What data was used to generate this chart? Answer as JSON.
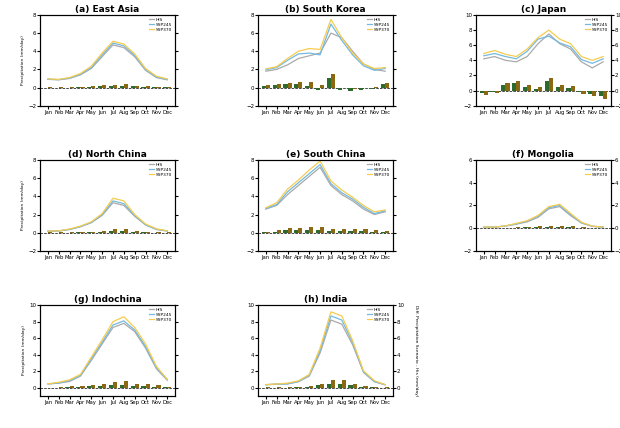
{
  "panels": [
    {
      "title": "(a) East Asia",
      "his": [
        0.9,
        0.85,
        1.0,
        1.4,
        2.1,
        3.4,
        4.7,
        4.4,
        3.4,
        1.9,
        1.1,
        0.85
      ],
      "ssp245": [
        0.92,
        0.87,
        1.05,
        1.45,
        2.2,
        3.6,
        4.9,
        4.6,
        3.55,
        2.0,
        1.15,
        0.9
      ],
      "ssp370": [
        0.95,
        0.9,
        1.1,
        1.55,
        2.35,
        3.8,
        5.1,
        4.8,
        3.7,
        2.1,
        1.25,
        0.95
      ],
      "bars_ssp245": [
        0.0,
        0.0,
        0.0,
        0.02,
        0.08,
        0.15,
        0.18,
        0.18,
        0.12,
        0.08,
        0.06,
        0.03
      ],
      "bars_ssp370": [
        0.02,
        0.02,
        0.03,
        0.05,
        0.15,
        0.28,
        0.32,
        0.35,
        0.22,
        0.12,
        0.08,
        0.04
      ],
      "ylim_left": [
        -2.0,
        8.0
      ],
      "ylim_right": [
        -2.0,
        8.0
      ],
      "yticks_left": [
        -2,
        0,
        2,
        4,
        6,
        8
      ],
      "yticks_right": [
        -2,
        0,
        2,
        4,
        6,
        8
      ]
    },
    {
      "title": "(b) South Korea",
      "his": [
        1.8,
        2.0,
        2.5,
        3.2,
        3.5,
        3.8,
        6.0,
        5.5,
        4.0,
        2.6,
        2.0,
        1.8
      ],
      "ssp245": [
        1.95,
        2.2,
        3.0,
        3.7,
        3.8,
        3.6,
        7.0,
        5.2,
        3.6,
        2.4,
        1.9,
        2.1
      ],
      "ssp370": [
        2.05,
        2.3,
        3.2,
        4.0,
        4.3,
        4.2,
        7.5,
        5.5,
        3.8,
        2.6,
        2.1,
        2.2
      ],
      "bars_ssp245": [
        0.15,
        0.25,
        0.35,
        0.35,
        0.18,
        -0.25,
        1.0,
        -0.3,
        -0.4,
        -0.25,
        -0.15,
        0.35
      ],
      "bars_ssp370": [
        0.25,
        0.35,
        0.55,
        0.65,
        0.65,
        0.25,
        1.45,
        -0.05,
        -0.2,
        -0.05,
        0.05,
        0.45
      ],
      "ylim_left": [
        -2.0,
        8.0
      ],
      "ylim_right": [
        -2.0,
        8.0
      ],
      "yticks_left": [
        -2,
        0,
        2,
        4,
        6,
        8
      ],
      "yticks_right": [
        -2,
        0,
        2,
        4,
        6,
        8
      ]
    },
    {
      "title": "(c) Japan",
      "his": [
        4.2,
        4.5,
        4.0,
        3.8,
        4.5,
        6.2,
        7.5,
        6.2,
        5.5,
        3.8,
        3.0,
        3.8
      ],
      "ssp245": [
        4.6,
        4.9,
        4.5,
        4.2,
        5.2,
        6.8,
        7.2,
        6.3,
        5.8,
        4.1,
        3.6,
        4.2
      ],
      "ssp370": [
        4.9,
        5.3,
        4.8,
        4.5,
        5.5,
        7.0,
        8.0,
        6.8,
        6.2,
        4.5,
        4.0,
        4.5
      ],
      "bars_ssp245": [
        -0.35,
        -0.25,
        0.75,
        0.95,
        0.45,
        0.25,
        1.2,
        0.45,
        0.35,
        -0.25,
        -0.45,
        -0.75
      ],
      "bars_ssp370": [
        -0.55,
        -0.35,
        0.95,
        1.2,
        0.75,
        0.45,
        1.7,
        0.75,
        0.55,
        -0.45,
        -0.75,
        -1.1
      ],
      "ylim_left": [
        -2.0,
        10.0
      ],
      "ylim_right": [
        -2.0,
        10.0
      ],
      "yticks_left": [
        -2,
        0,
        2,
        4,
        6,
        8,
        10
      ],
      "yticks_right": [
        -2,
        0,
        2,
        4,
        6,
        8,
        10
      ]
    },
    {
      "title": "(d) North China",
      "his": [
        0.15,
        0.18,
        0.35,
        0.65,
        1.1,
        1.9,
        3.3,
        3.0,
        1.8,
        0.85,
        0.35,
        0.18
      ],
      "ssp245": [
        0.16,
        0.19,
        0.36,
        0.67,
        1.12,
        2.0,
        3.5,
        3.2,
        1.9,
        0.88,
        0.37,
        0.19
      ],
      "ssp370": [
        0.17,
        0.2,
        0.4,
        0.72,
        1.2,
        2.1,
        3.8,
        3.5,
        2.0,
        0.95,
        0.42,
        0.2
      ],
      "bars_ssp245": [
        0.01,
        0.01,
        0.01,
        0.02,
        0.02,
        0.08,
        0.18,
        0.18,
        0.08,
        0.03,
        0.01,
        0.01
      ],
      "bars_ssp370": [
        0.02,
        0.02,
        0.04,
        0.06,
        0.09,
        0.18,
        0.45,
        0.45,
        0.18,
        0.08,
        0.05,
        0.02
      ],
      "ylim_left": [
        -2.0,
        8.0
      ],
      "ylim_right": [
        -2.0,
        8.0
      ],
      "yticks_left": [
        -2,
        0,
        2,
        4,
        6,
        8
      ],
      "yticks_right": [
        -2,
        0,
        2,
        4,
        6,
        8
      ]
    },
    {
      "title": "(e) South China",
      "his": [
        2.6,
        3.0,
        4.2,
        5.2,
        6.2,
        7.2,
        5.2,
        4.2,
        3.5,
        2.6,
        2.0,
        2.3
      ],
      "ssp245": [
        2.65,
        3.1,
        4.5,
        5.5,
        6.5,
        7.5,
        5.4,
        4.4,
        3.7,
        2.8,
        2.1,
        2.4
      ],
      "ssp370": [
        2.75,
        3.3,
        4.8,
        5.8,
        6.9,
        7.9,
        5.7,
        4.7,
        3.9,
        3.0,
        2.3,
        2.5
      ],
      "bars_ssp245": [
        0.02,
        0.08,
        0.28,
        0.28,
        0.28,
        0.28,
        0.18,
        0.18,
        0.18,
        0.18,
        0.08,
        0.08
      ],
      "bars_ssp370": [
        0.08,
        0.28,
        0.48,
        0.48,
        0.65,
        0.65,
        0.45,
        0.45,
        0.38,
        0.38,
        0.28,
        0.18
      ],
      "ylim_left": [
        -2.0,
        8.0
      ],
      "ylim_right": [
        -2.0,
        8.0
      ],
      "yticks_left": [
        -2,
        0,
        2,
        4,
        6,
        8
      ],
      "yticks_right": [
        -2,
        0,
        2,
        4,
        6,
        8
      ]
    },
    {
      "title": "(f) Mongolia",
      "his": [
        0.08,
        0.08,
        0.18,
        0.35,
        0.55,
        0.95,
        1.7,
        1.9,
        1.1,
        0.45,
        0.15,
        0.08
      ],
      "ssp245": [
        0.09,
        0.09,
        0.19,
        0.37,
        0.62,
        1.05,
        1.8,
        2.0,
        1.2,
        0.48,
        0.17,
        0.09
      ],
      "ssp370": [
        0.09,
        0.09,
        0.2,
        0.42,
        0.65,
        1.12,
        1.9,
        2.1,
        1.3,
        0.52,
        0.18,
        0.09
      ],
      "bars_ssp245": [
        0.01,
        0.01,
        0.01,
        0.02,
        0.07,
        0.08,
        0.08,
        0.08,
        0.08,
        0.03,
        0.02,
        0.01
      ],
      "bars_ssp370": [
        0.01,
        0.01,
        0.02,
        0.07,
        0.09,
        0.17,
        0.18,
        0.18,
        0.18,
        0.07,
        0.03,
        0.01
      ],
      "ylim_left": [
        -2.0,
        6.0
      ],
      "ylim_right": [
        -2.0,
        6.0
      ],
      "yticks_left": [
        -2,
        0,
        2,
        4,
        6
      ],
      "yticks_right": [
        -2,
        0,
        2,
        4,
        6
      ]
    },
    {
      "title": "(g) Indochina",
      "his": [
        0.45,
        0.55,
        0.75,
        1.4,
        3.3,
        5.3,
        7.3,
        7.8,
        6.8,
        4.8,
        2.3,
        0.9
      ],
      "ssp245": [
        0.46,
        0.56,
        0.85,
        1.5,
        3.5,
        5.5,
        7.6,
        8.1,
        7.0,
        5.0,
        2.4,
        1.0
      ],
      "ssp370": [
        0.47,
        0.65,
        0.95,
        1.6,
        3.7,
        5.8,
        8.0,
        8.6,
        7.3,
        5.3,
        2.6,
        1.0
      ],
      "bars_ssp245": [
        -0.08,
        0.0,
        0.08,
        0.08,
        0.18,
        0.18,
        0.28,
        0.28,
        0.18,
        0.18,
        0.08,
        0.08
      ],
      "bars_ssp370": [
        -0.08,
        0.08,
        0.18,
        0.18,
        0.38,
        0.45,
        0.65,
        0.75,
        0.45,
        0.45,
        0.28,
        0.08
      ],
      "ylim_left": [
        -1.0,
        10.0
      ],
      "ylim_right": [
        -1.0,
        10.0
      ],
      "yticks_left": [
        0,
        2,
        4,
        6,
        8,
        10
      ],
      "yticks_right": [
        0,
        2,
        4,
        6,
        8,
        10
      ]
    },
    {
      "title": "(h) India",
      "his": [
        0.35,
        0.42,
        0.45,
        0.72,
        1.4,
        4.2,
        8.2,
        7.7,
        5.2,
        1.85,
        0.72,
        0.35
      ],
      "ssp245": [
        0.36,
        0.43,
        0.46,
        0.74,
        1.5,
        4.5,
        8.7,
        8.2,
        5.5,
        1.95,
        0.74,
        0.36
      ],
      "ssp370": [
        0.37,
        0.44,
        0.55,
        0.82,
        1.6,
        4.8,
        9.2,
        8.7,
        5.7,
        2.05,
        0.85,
        0.37
      ],
      "bars_ssp245": [
        0.01,
        0.01,
        0.01,
        0.02,
        0.08,
        0.28,
        0.45,
        0.45,
        0.28,
        0.08,
        0.02,
        0.01
      ],
      "bars_ssp370": [
        0.02,
        0.02,
        0.08,
        0.08,
        0.18,
        0.48,
        0.95,
        0.95,
        0.48,
        0.18,
        0.08,
        0.02
      ],
      "ylim_left": [
        -1.0,
        10.0
      ],
      "ylim_right": [
        -1.0,
        10.0
      ],
      "yticks_left": [
        0,
        2,
        4,
        6,
        8,
        10
      ],
      "yticks_right": [
        0,
        2,
        4,
        6,
        8,
        10
      ]
    }
  ],
  "months": [
    "Jan",
    "Feb",
    "Mar",
    "Apr",
    "May",
    "Jun",
    "Jul",
    "Aug",
    "Sep",
    "Oct",
    "Nov",
    "Dec"
  ],
  "color_his": "#aaaaaa",
  "color_ssp245": "#74b9e0",
  "color_ssp370": "#f5cc50",
  "color_bar_ssp245": "#2d6b2d",
  "color_bar_ssp370": "#8b6914",
  "ylabel_left": "Precipitation (mm/day)",
  "ylabel_right": "Diff. Precipitation Scenario - His (mm/day)"
}
